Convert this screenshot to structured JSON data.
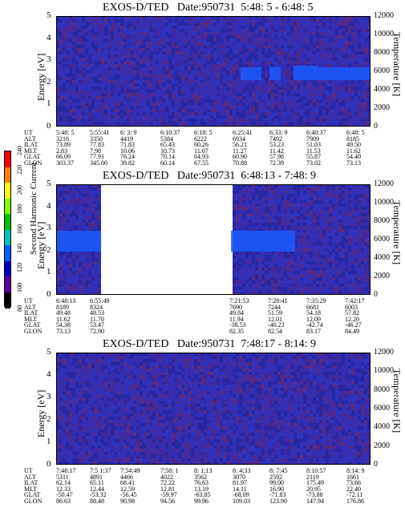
{
  "colorbar": {
    "label": "Second Harmonic Current",
    "ticks": [
      "240",
      "220",
      "200",
      "180",
      "160",
      "140",
      "120",
      "100",
      "80"
    ],
    "colors": [
      "#ff0000",
      "#ff7f00",
      "#ffff00",
      "#7fff00",
      "#00c000",
      "#00c0c0",
      "#0060ff",
      "#0000c0",
      "#5a00a0",
      "#000000"
    ]
  },
  "panels": [
    {
      "title": "EXOS-D/TED   Date:950731  5:48: 5 - 6:48: 5",
      "y_label": "Energy [eV]",
      "y2_label": "Temperature [K]",
      "y_ticks": [
        "0",
        "1",
        "2",
        "3",
        "4",
        "5"
      ],
      "y2_ticks": [
        "0",
        "2000",
        "4000",
        "6000",
        "8000",
        "10000",
        "12000"
      ],
      "header_labels": [
        "UT",
        "ALT",
        "ILAT",
        "MLT",
        "GLAT",
        "GLON"
      ],
      "columns": [
        [
          "5:48: 5",
          "3216",
          "73.89",
          "2.83",
          "66.09",
          "303.37"
        ],
        [
          "5:55:41",
          "3350",
          "77.83",
          "7.98",
          "77.91",
          "345.00"
        ],
        [
          "6: 3: 9",
          "4419",
          "71.83",
          "10.06",
          "76.24",
          "39.82"
        ],
        [
          "6:10:37",
          "5384",
          "65.43",
          "10.73",
          "70.14",
          "60.14"
        ],
        [
          "6:18: 5",
          "6222",
          "60.26",
          "11.07",
          "64.93",
          "67.55"
        ],
        [
          "6:25:41",
          "6934",
          "56.21",
          "11.27",
          "60.90",
          "70.88"
        ],
        [
          "6:33: 9",
          "7492",
          "53.23",
          "11.42",
          "57.98",
          "72.39"
        ],
        [
          "6:40:37",
          "7909",
          "51.03",
          "11.53",
          "55.87",
          "73.02"
        ],
        [
          "6:48: 5",
          "8185",
          "49.50",
          "11.62",
          "54.40",
          "73.13"
        ]
      ]
    },
    {
      "title": "EXOS-D/TED   Date:950731  6:48:13 - 7:48: 9",
      "y_label": "Energy [eV]",
      "y2_label": "Temperature [K]",
      "y_ticks": [
        "0",
        "1",
        "2",
        "3",
        "4",
        "5"
      ],
      "y2_ticks": [
        "0",
        "2000",
        "4000",
        "6000",
        "8000",
        "10000",
        "12000"
      ],
      "header_labels": [
        "UT",
        "ALT",
        "ILAT",
        "MLT",
        "GLAT",
        "GLON"
      ],
      "columns": [
        [
          "6:48:13",
          "8189",
          "49.48",
          "11.62",
          "54.38",
          "73.13"
        ],
        [
          "6:55:49",
          "8324",
          "48.53",
          "11.70",
          "53.47",
          "72.90"
        ],
        [
          "7:21:53",
          "7690",
          "49.84",
          "11.94",
          "-38.53",
          "82.35"
        ],
        [
          "7:28:41",
          "7244",
          "51.59",
          "12.01",
          "-40.23",
          "82.54"
        ],
        [
          "7:35:29",
          "6681",
          "54.18",
          "12.09",
          "-42.74",
          "83.17"
        ],
        [
          "7:42:17",
          "6003",
          "57.82",
          "12.20",
          "-46.27",
          "84.49"
        ]
      ]
    },
    {
      "title": "EXOS-D/TED   Date:950731  7:48:17 - 8:14: 9",
      "y_label": "Energy [eV]",
      "y2_label": "Temperature [K]",
      "y_ticks": [
        "0",
        "1",
        "2",
        "3",
        "4",
        "5"
      ],
      "y2_ticks": [
        "0",
        "2000",
        "4000",
        "6000",
        "8000",
        "10000",
        "12000"
      ],
      "header_labels": [
        "UT",
        "ALT",
        "ILAT",
        "MLT",
        "GLAT",
        "GLON"
      ],
      "columns": [
        [
          "7:48:17",
          "5311",
          "62.14",
          "12.33",
          "-50.47",
          "86.63"
        ],
        [
          "7:5 1:37",
          "4891",
          "65.11",
          "12.44",
          "-53.32",
          "88.48"
        ],
        [
          "7:54:49",
          "4466",
          "68.41",
          "12.59",
          "-56.45",
          "90.98"
        ],
        [
          "7:58: 1",
          "4022",
          "72.22",
          "12.81",
          "-59.97",
          "94.56"
        ],
        [
          "8: 1:13",
          "3562",
          "76.63",
          "13.19",
          "-63.85",
          "99.96"
        ],
        [
          "8: 4:33",
          "3070",
          "81.97",
          "14.11",
          "-68.09",
          "109.03"
        ],
        [
          "8: 7:45",
          "2592",
          "99.00",
          "16.90",
          "-71.83",
          "123.90"
        ],
        [
          "8:10:57",
          "2119",
          "175.49",
          "20.95",
          "-73.88",
          "147.94"
        ],
        [
          "8:14: 9",
          "1661",
          "73.66",
          "22.40",
          "-72.11",
          "176.86"
        ]
      ]
    }
  ],
  "chart_data": [
    {
      "type": "heatmap",
      "title": "EXOS-D/TED   Date:950731  5:48: 5 - 6:48: 5",
      "ylabel": "Energy [eV]",
      "y2label": "Temperature [K]",
      "ylim": [
        0,
        5
      ],
      "y2lim": [
        0,
        12000
      ],
      "x": [
        "5:48: 5",
        "5:55:41",
        "6: 3: 9",
        "6:10:37",
        "6:18: 5",
        "6:25:41",
        "6:33: 9",
        "6:40:37",
        "6:48: 5"
      ]
    },
    {
      "type": "heatmap",
      "title": "EXOS-D/TED   Date:950731  6:48:13 - 7:48: 9",
      "ylabel": "Energy [eV]",
      "y2label": "Temperature [K]",
      "ylim": [
        0,
        5
      ],
      "y2lim": [
        0,
        12000
      ],
      "x": [
        "6:48:13",
        "6:55:49",
        "7:21:53",
        "7:28:41",
        "7:35:29",
        "7:42:17"
      ]
    },
    {
      "type": "heatmap",
      "title": "EXOS-D/TED   Date:950731  7:48:17 - 8:14: 9",
      "ylabel": "Energy [eV]",
      "y2label": "Temperature [K]",
      "ylim": [
        0,
        5
      ],
      "y2lim": [
        0,
        12000
      ],
      "x": [
        "7:48:17",
        "7:5 1:37",
        "7:54:49",
        "7:58: 1",
        "8: 1:13",
        "8: 4:33",
        "8: 7:45",
        "8:10:57",
        "8:14: 9"
      ]
    }
  ]
}
